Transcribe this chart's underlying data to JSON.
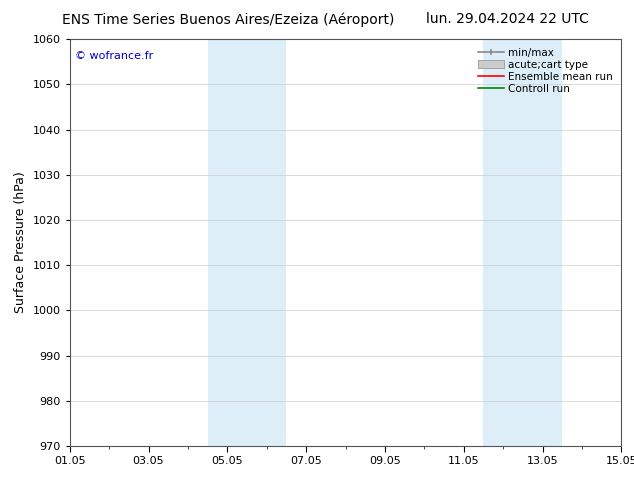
{
  "title_left": "ENS Time Series Buenos Aires/Ezeiza (Aéroport)",
  "title_right": "lun. 29.04.2024 22 UTC",
  "ylabel": "Surface Pressure (hPa)",
  "ylim": [
    970,
    1060
  ],
  "yticks": [
    970,
    980,
    990,
    1000,
    1010,
    1020,
    1030,
    1040,
    1050,
    1060
  ],
  "xtick_labels": [
    "01.05",
    "03.05",
    "05.05",
    "07.05",
    "09.05",
    "11.05",
    "13.05",
    "15.05"
  ],
  "xtick_positions_days": [
    0,
    2,
    4,
    6,
    8,
    10,
    12,
    14
  ],
  "shaded_bands": [
    {
      "start_day": 3.5,
      "end_day": 4.5,
      "color": "#ddeef8"
    },
    {
      "start_day": 4.5,
      "end_day": 5.5,
      "color": "#ddeef8"
    },
    {
      "start_day": 10.5,
      "end_day": 11.5,
      "color": "#ddeef8"
    },
    {
      "start_day": 11.5,
      "end_day": 12.5,
      "color": "#ddeef8"
    }
  ],
  "copyright_text": "© wofrance.fr",
  "copyright_color": "#0000cc",
  "bg_color": "#ffffff",
  "plot_bg_color": "#ffffff",
  "grid_color": "#cccccc",
  "title_fontsize": 10,
  "label_fontsize": 9,
  "tick_fontsize": 8,
  "legend_fontsize": 7.5,
  "minmax_color": "#888888",
  "acute_color": "#cccccc",
  "ensemble_color": "#ff0000",
  "control_color": "#008800"
}
